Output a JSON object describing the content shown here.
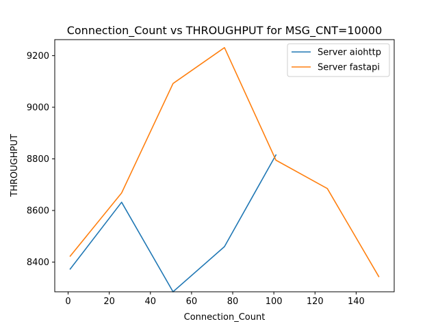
{
  "chart_data": {
    "type": "line",
    "title": "Connection_Count vs THROUGHPUT for MSG_CNT=10000",
    "xlabel": "Connection_Count",
    "ylabel": "THROUGHPUT",
    "xlim": [
      -6.5,
      158.5
    ],
    "ylim": [
      8285,
      9262
    ],
    "xticks": [
      0,
      20,
      40,
      60,
      80,
      100,
      120,
      140
    ],
    "yticks": [
      8400,
      8600,
      8800,
      9000,
      9200
    ],
    "grid": false,
    "legend_position": "top-right",
    "series": [
      {
        "name": "Server aiohttp",
        "color": "#1f77b4",
        "x": [
          1,
          26,
          51,
          76,
          101
        ],
        "y": [
          8373,
          8632,
          8285,
          8460,
          8815
        ]
      },
      {
        "name": "Server fastapi",
        "color": "#ff7f0e",
        "x": [
          1,
          26,
          51,
          76,
          101,
          126,
          151
        ],
        "y": [
          8423,
          8668,
          9092,
          9231,
          8795,
          8685,
          8344
        ]
      }
    ]
  }
}
